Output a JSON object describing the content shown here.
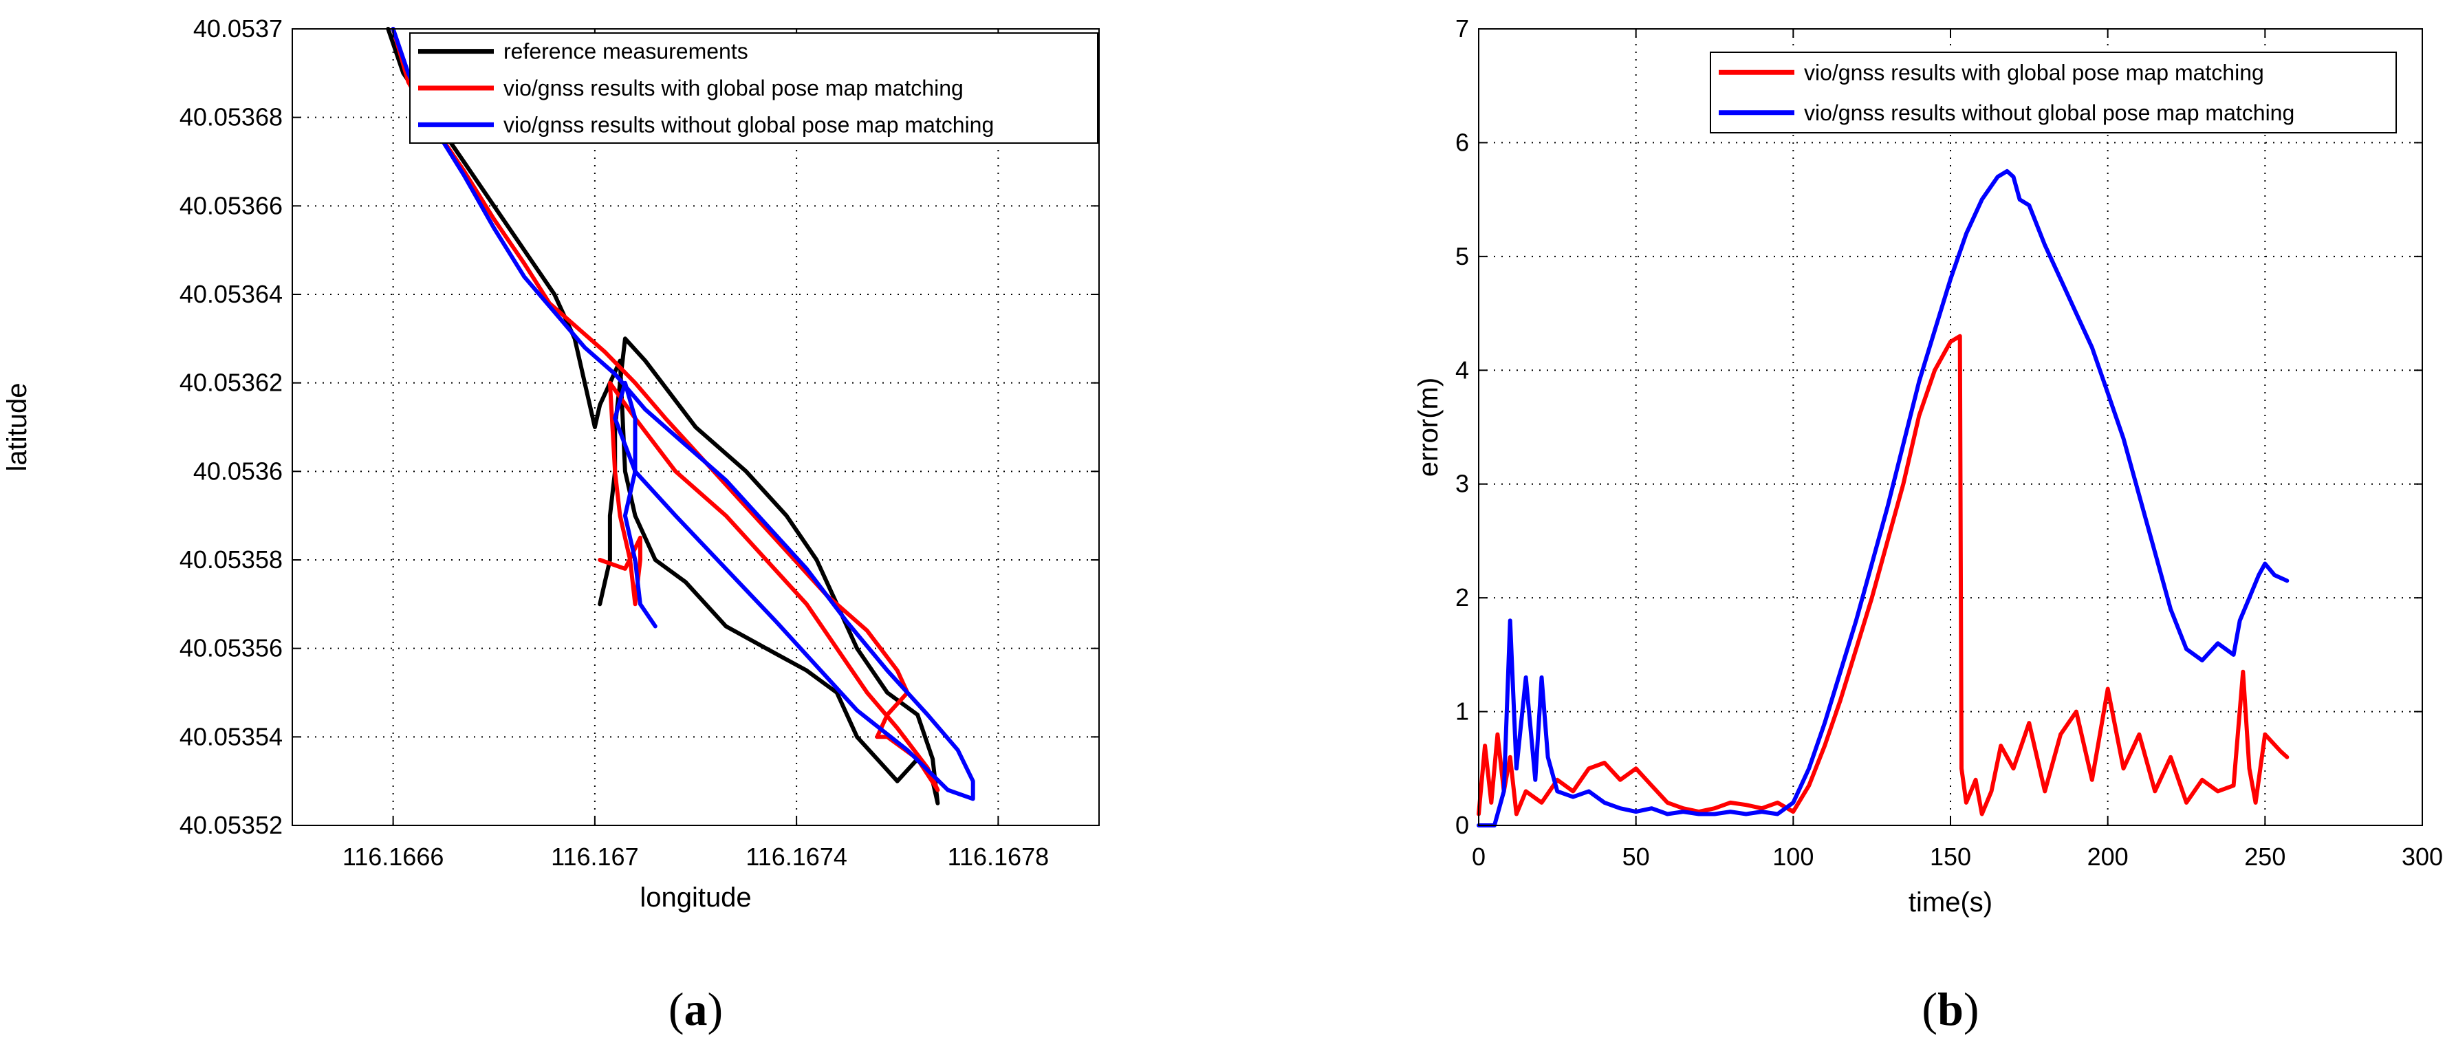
{
  "colors": {
    "reference": "#000000",
    "with_map": "#ff0000",
    "without_map": "#0000ff"
  },
  "panel_labels": [
    "(a)",
    "(b)"
  ],
  "chart_data": [
    {
      "type": "line",
      "panel": "(a)",
      "title": "",
      "xlabel": "longitude",
      "ylabel": "latitude",
      "xlim": [
        116.1664,
        116.168
      ],
      "ylim": [
        40.05352,
        40.0537
      ],
      "xticks": [
        116.1666,
        116.167,
        116.1674,
        116.1678
      ],
      "xtick_labels": [
        "116.1666",
        "116.167",
        "116.1674",
        "116.1678"
      ],
      "yticks": [
        40.05352,
        40.05354,
        40.05356,
        40.05358,
        40.0536,
        40.05362,
        40.05364,
        40.05366,
        40.05368,
        40.0537
      ],
      "ytick_labels": [
        "40.05352",
        "40.05354",
        "40.05356",
        "40.05358",
        "40.0536",
        "40.05362",
        "40.05364",
        "40.05366",
        "40.05368",
        "40.0537"
      ],
      "grid": true,
      "legend_position": "top-right",
      "series": [
        {
          "name": "reference measurements",
          "color": "#000000",
          "x": [
            116.16659,
            116.16662,
            116.16668,
            116.16674,
            116.1668,
            116.16686,
            116.16692,
            116.16696,
            116.16698,
            116.167,
            116.16701,
            116.16703,
            116.16705,
            116.16706,
            116.16708,
            116.16712,
            116.16718,
            116.16726,
            116.16734,
            116.16742,
            116.16748,
            116.16752,
            116.16756,
            116.1676,
            116.16764,
            116.16767,
            116.16768,
            116.16767,
            116.16764,
            116.16758,
            116.16752,
            116.16748,
            116.16744,
            116.16738,
            116.1673,
            116.1672,
            116.1671,
            116.16706,
            116.16705,
            116.16704,
            116.16704,
            116.16703,
            116.16703,
            116.16702,
            116.16701
          ],
          "y": [
            40.0537,
            40.05369,
            40.05368,
            40.05367,
            40.05366,
            40.05365,
            40.05364,
            40.05363,
            40.05362,
            40.05361,
            40.053615,
            40.05362,
            40.053625,
            40.0536,
            40.05359,
            40.05358,
            40.053575,
            40.053565,
            40.05356,
            40.053555,
            40.05355,
            40.05354,
            40.053535,
            40.05353,
            40.053535,
            40.05353,
            40.053525,
            40.053535,
            40.053545,
            40.05355,
            40.05356,
            40.05357,
            40.05358,
            40.05359,
            40.0536,
            40.05361,
            40.053625,
            40.05363,
            40.05362,
            40.05361,
            40.0536,
            40.05359,
            40.05358,
            40.053575,
            40.05357
          ]
        },
        {
          "name": "vio/gnss results with global pose map matching",
          "color": "#ff0000",
          "x": [
            116.1666,
            116.16663,
            116.16668,
            116.16674,
            116.1668,
            116.16686,
            116.16691,
            116.16697,
            116.16702,
            116.16708,
            116.16714,
            116.16722,
            116.1673,
            116.16738,
            116.16746,
            116.16754,
            116.1676,
            116.16762,
            116.16758,
            116.16756,
            116.16758,
            116.16764,
            116.16768,
            116.16766,
            116.1676,
            116.16754,
            116.16748,
            116.16742,
            116.16734,
            116.16726,
            116.16716,
            116.16708,
            116.16703,
            116.16704,
            116.16705,
            116.16707,
            116.16708,
            116.16709,
            116.16709,
            116.16706,
            116.16701
          ],
          "y": [
            40.0537,
            40.053688,
            40.053678,
            40.053668,
            40.053657,
            40.053647,
            40.053638,
            40.053632,
            40.053627,
            40.05362,
            40.053612,
            40.053602,
            40.053592,
            40.053582,
            40.053572,
            40.053564,
            40.053555,
            40.05355,
            40.053545,
            40.05354,
            40.05354,
            40.053535,
            40.053528,
            40.053533,
            40.053542,
            40.05355,
            40.05356,
            40.05357,
            40.05358,
            40.05359,
            40.0536,
            40.053612,
            40.05362,
            40.0536,
            40.05359,
            40.05358,
            40.05357,
            40.05358,
            40.053585,
            40.053578,
            40.05358
          ]
        },
        {
          "name": "vio/gnss results without global pose map matching",
          "color": "#0000ff",
          "x": [
            116.1666,
            116.16663,
            116.16668,
            116.16674,
            116.1668,
            116.16686,
            116.16692,
            116.16698,
            116.16704,
            116.1671,
            116.16718,
            116.16726,
            116.16734,
            116.16742,
            116.1675,
            116.16758,
            116.16766,
            116.16772,
            116.16775,
            116.16775,
            116.1677,
            116.16762,
            116.16752,
            116.16744,
            116.16736,
            116.16726,
            116.16716,
            116.16708,
            116.16704,
            116.16706,
            116.16708,
            116.16708,
            116.16706,
            116.16708,
            116.16709,
            116.16712
          ],
          "y": [
            40.0537,
            40.05369,
            40.053678,
            40.053667,
            40.053655,
            40.053644,
            40.053636,
            40.053628,
            40.053622,
            40.053614,
            40.053606,
            40.053598,
            40.053588,
            40.053578,
            40.053566,
            40.053555,
            40.053545,
            40.053537,
            40.05353,
            40.053526,
            40.053528,
            40.053537,
            40.053546,
            40.053556,
            40.053566,
            40.053578,
            40.05359,
            40.0536,
            40.053612,
            40.05362,
            40.053612,
            40.0536,
            40.05359,
            40.05358,
            40.05357,
            40.053565
          ]
        }
      ]
    },
    {
      "type": "line",
      "panel": "(b)",
      "title": "",
      "xlabel": "time(s)",
      "ylabel": "error(m)",
      "xlim": [
        0,
        300
      ],
      "ylim": [
        0,
        7
      ],
      "xticks": [
        0,
        50,
        100,
        150,
        200,
        250,
        300
      ],
      "xtick_labels": [
        "0",
        "50",
        "100",
        "150",
        "200",
        "250",
        "300"
      ],
      "yticks": [
        0,
        1,
        2,
        3,
        4,
        5,
        6,
        7
      ],
      "ytick_labels": [
        "0",
        "1",
        "2",
        "3",
        "4",
        "5",
        "6",
        "7"
      ],
      "grid": true,
      "legend_position": "top-right",
      "series": [
        {
          "name": "vio/gnss results with global pose map matching",
          "color": "#ff0000",
          "x": [
            0,
            2,
            4,
            6,
            8,
            10,
            12,
            15,
            20,
            25,
            30,
            35,
            40,
            45,
            50,
            55,
            60,
            65,
            70,
            75,
            80,
            85,
            90,
            95,
            100,
            105,
            110,
            115,
            120,
            125,
            130,
            135,
            140,
            145,
            150,
            153,
            153.5,
            155,
            158,
            160,
            163,
            166,
            170,
            175,
            180,
            185,
            190,
            195,
            200,
            205,
            210,
            215,
            220,
            225,
            230,
            235,
            240,
            243,
            245,
            247,
            250,
            255,
            257
          ],
          "y": [
            0.1,
            0.7,
            0.2,
            0.8,
            0.3,
            0.6,
            0.1,
            0.3,
            0.2,
            0.4,
            0.3,
            0.5,
            0.55,
            0.4,
            0.5,
            0.35,
            0.2,
            0.15,
            0.12,
            0.15,
            0.2,
            0.18,
            0.15,
            0.2,
            0.12,
            0.35,
            0.7,
            1.1,
            1.55,
            2.0,
            2.5,
            3.0,
            3.6,
            4.0,
            4.25,
            4.3,
            0.5,
            0.2,
            0.4,
            0.1,
            0.3,
            0.7,
            0.5,
            0.9,
            0.3,
            0.8,
            1.0,
            0.4,
            1.2,
            0.5,
            0.8,
            0.3,
            0.6,
            0.2,
            0.4,
            0.3,
            0.35,
            1.35,
            0.5,
            0.2,
            0.8,
            0.65,
            0.6
          ]
        },
        {
          "name": "vio/gnss results without global pose map matching",
          "color": "#0000ff",
          "x": [
            0,
            5,
            8,
            10,
            12,
            15,
            18,
            20,
            22,
            25,
            30,
            35,
            40,
            45,
            50,
            55,
            60,
            65,
            70,
            75,
            80,
            85,
            90,
            95,
            100,
            105,
            110,
            115,
            120,
            125,
            130,
            135,
            140,
            145,
            150,
            155,
            160,
            165,
            168,
            170,
            172,
            175,
            180,
            185,
            190,
            195,
            200,
            205,
            210,
            215,
            220,
            225,
            230,
            235,
            240,
            242,
            245,
            248,
            250,
            253,
            257
          ],
          "y": [
            0,
            0,
            0.3,
            1.8,
            0.5,
            1.3,
            0.4,
            1.3,
            0.6,
            0.3,
            0.25,
            0.3,
            0.2,
            0.15,
            0.12,
            0.15,
            0.1,
            0.12,
            0.1,
            0.1,
            0.12,
            0.1,
            0.12,
            0.1,
            0.2,
            0.5,
            0.9,
            1.35,
            1.8,
            2.3,
            2.8,
            3.35,
            3.9,
            4.35,
            4.8,
            5.2,
            5.5,
            5.7,
            5.75,
            5.7,
            5.5,
            5.45,
            5.1,
            4.8,
            4.5,
            4.2,
            3.8,
            3.4,
            2.9,
            2.4,
            1.9,
            1.55,
            1.45,
            1.6,
            1.5,
            1.8,
            2.0,
            2.2,
            2.3,
            2.2,
            2.15
          ]
        }
      ]
    }
  ]
}
